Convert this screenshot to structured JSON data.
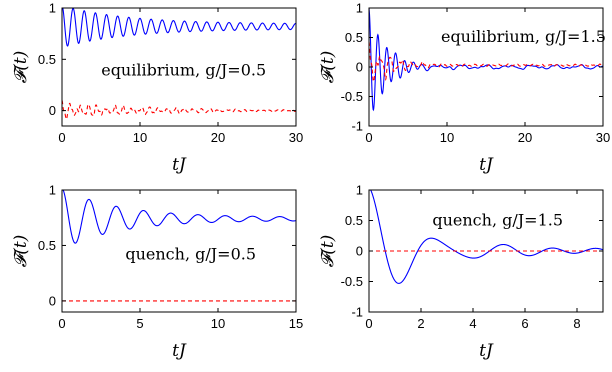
{
  "chart_data": [
    {
      "type": "line",
      "panel": "top-left",
      "annotation": "equilibrium, g/J=0.5",
      "xlabel": "tJ",
      "ylabel": "𝓕(t)",
      "xlim": [
        0,
        30
      ],
      "ylim": [
        -0.15,
        1.0
      ],
      "xticks": [
        0,
        10,
        20,
        30
      ],
      "yticks": [
        0,
        0.5,
        1
      ],
      "xtick_labels": [
        "0",
        "10",
        "20",
        "30"
      ],
      "ytick_labels": [
        "0",
        "0.5",
        "1"
      ],
      "grid": false,
      "series": [
        {
          "style": "solid",
          "color": "#0000ff",
          "model": {
            "kind": "damped_cosine",
            "offset": 0.82,
            "amp": 0.18,
            "decay": 0.12,
            "omega": 4.4,
            "tail_amp": 0.025,
            "x_max": 30
          }
        },
        {
          "style": "dashed",
          "color": "#ff0000",
          "model": {
            "kind": "noisy_oscillation",
            "offset": 0.0,
            "amp": 0.09,
            "decay": 0.1,
            "omega": 5.6,
            "tail_amp": 0.012,
            "x_max": 30
          }
        }
      ]
    },
    {
      "type": "line",
      "panel": "top-right",
      "annotation": "equilibrium, g/J=1.5",
      "xlabel": "tJ",
      "ylabel": "𝓕(t)",
      "xlim": [
        0,
        30
      ],
      "ylim": [
        -1,
        1
      ],
      "xticks": [
        0,
        10,
        20,
        30
      ],
      "yticks": [
        -1,
        -0.5,
        0,
        0.5,
        1
      ],
      "xtick_labels": [
        "0",
        "10",
        "20",
        "30"
      ],
      "ytick_labels": [
        "-1",
        "-0.5",
        "0",
        "0.5",
        "1"
      ],
      "grid": false,
      "series": [
        {
          "style": "solid",
          "color": "#0000ff",
          "model": {
            "kind": "strong_damped",
            "offset": 0.0,
            "amp": 0.95,
            "decay": 0.45,
            "omega": 5.5,
            "tail_amp": 0.04,
            "x_max": 30
          }
        },
        {
          "style": "dashed",
          "color": "#ff0000",
          "model": {
            "kind": "noisy_oscillation",
            "offset": 0.03,
            "amp": 0.35,
            "decay": 0.3,
            "omega": 4.6,
            "tail_amp": 0.02,
            "x_max": 30
          }
        }
      ]
    },
    {
      "type": "line",
      "panel": "bottom-left",
      "annotation": "quench, g/J=0.5",
      "xlabel": "tJ",
      "ylabel": "𝓕(t)",
      "xlim": [
        0,
        15
      ],
      "ylim": [
        -0.1,
        1.0
      ],
      "xticks": [
        0,
        5,
        10,
        15
      ],
      "yticks": [
        0,
        0.5,
        1
      ],
      "xtick_labels": [
        "0",
        "5",
        "10",
        "15"
      ],
      "ytick_labels": [
        "0",
        "0.5",
        "1"
      ],
      "grid": false,
      "series": [
        {
          "style": "solid",
          "color": "#0000ff",
          "model": {
            "kind": "damped_cosine",
            "offset": 0.74,
            "amp": 0.26,
            "decay": 0.28,
            "omega": 3.6,
            "tail_amp": 0.015,
            "x_max": 15
          }
        },
        {
          "style": "dashed",
          "color": "#ff0000",
          "model": {
            "kind": "constant",
            "offset": 0.0,
            "x_max": 15
          }
        }
      ]
    },
    {
      "type": "line",
      "panel": "bottom-right",
      "annotation": "quench, g/J=1.5",
      "xlabel": "tJ",
      "ylabel": "𝓕(t)",
      "xlim": [
        0,
        9
      ],
      "ylim": [
        -1,
        1
      ],
      "xticks": [
        0,
        2,
        4,
        6,
        8
      ],
      "yticks": [
        -1,
        -0.5,
        0,
        0.5,
        1
      ],
      "xtick_labels": [
        "0",
        "2",
        "4",
        "6",
        "8"
      ],
      "ytick_labels": [
        "-1",
        "-0.5",
        "0",
        "0.5",
        "1"
      ],
      "grid": false,
      "series": [
        {
          "style": "solid",
          "color": "#0000ff",
          "model": {
            "kind": "quench_strong",
            "offset": 0.0,
            "amp": 1.0,
            "decay": 0.55,
            "omega": 2.45,
            "tail_amp": 0.05,
            "x_max": 9
          }
        },
        {
          "style": "dashed",
          "color": "#ff0000",
          "model": {
            "kind": "constant",
            "offset": 0.0,
            "x_max": 9
          }
        }
      ]
    }
  ]
}
